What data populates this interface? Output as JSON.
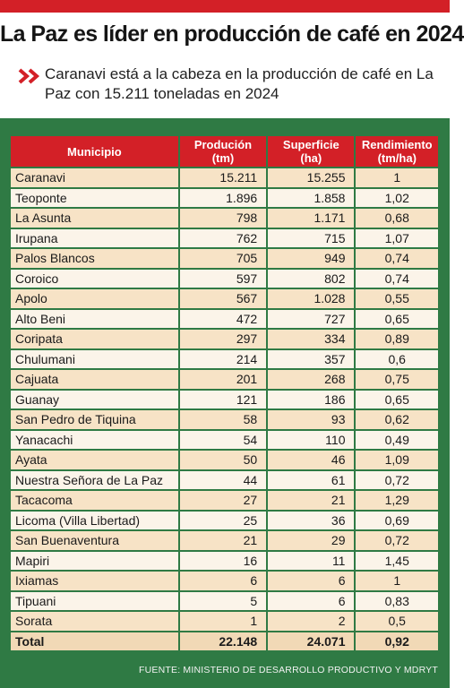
{
  "colors": {
    "accent": "#d32027",
    "panel": "#2f7a44",
    "row_odd": "#f7e3c6",
    "row_even": "#fbf4e9"
  },
  "header": {
    "title": "La Paz es líder en producción de café en 2024",
    "subtitle": "Caranavi está a la cabeza en la producción de café en La Paz con 15.211 toneladas  en 2024",
    "bullet_icon": "double-chevron-right-icon"
  },
  "chart_data": {
    "type": "table",
    "columns": [
      "Municipio",
      "Produción (tm)",
      "Superficie (ha)",
      "Rendimiento (tm/ha)"
    ],
    "rows": [
      [
        "Caranavi",
        "15.211",
        "15.255",
        "1"
      ],
      [
        "Teoponte",
        "1.896",
        "1.858",
        "1,02"
      ],
      [
        "La Asunta",
        "798",
        "1.171",
        "0,68"
      ],
      [
        "Irupana",
        "762",
        "715",
        "1,07"
      ],
      [
        "Palos Blancos",
        "705",
        "949",
        "0,74"
      ],
      [
        "Coroico",
        "597",
        "802",
        "0,74"
      ],
      [
        "Apolo",
        "567",
        "1.028",
        "0,55"
      ],
      [
        "Alto Beni",
        "472",
        "727",
        "0,65"
      ],
      [
        "Coripata",
        "297",
        "334",
        "0,89"
      ],
      [
        "Chulumani",
        "214",
        "357",
        "0,6"
      ],
      [
        "Cajuata",
        "201",
        "268",
        "0,75"
      ],
      [
        "Guanay",
        "121",
        "186",
        "0,65"
      ],
      [
        "San Pedro de Tiquina",
        "58",
        "93",
        "0,62"
      ],
      [
        "Yanacachi",
        "54",
        "110",
        "0,49"
      ],
      [
        "Ayata",
        "50",
        "46",
        "1,09"
      ],
      [
        "Nuestra Señora de La Paz",
        "44",
        "61",
        "0,72"
      ],
      [
        "Tacacoma",
        "27",
        "21",
        "1,29"
      ],
      [
        "Licoma (Villa Libertad)",
        "25",
        "36",
        "0,69"
      ],
      [
        "San Buenaventura",
        "21",
        "29",
        "0,72"
      ],
      [
        "Mapiri",
        "16",
        "11",
        "1,45"
      ],
      [
        "Ixiamas",
        "6",
        "6",
        "1"
      ],
      [
        "Tipuani",
        "5",
        "6",
        "0,83"
      ],
      [
        "Sorata",
        "1",
        "2",
        "0,5"
      ]
    ],
    "total": [
      "Total",
      "22.148",
      "24.071",
      "0,92"
    ],
    "source": "FUENTE: MINISTERIO DE DESARROLLO PRODUCTIVO Y MDRYT"
  }
}
